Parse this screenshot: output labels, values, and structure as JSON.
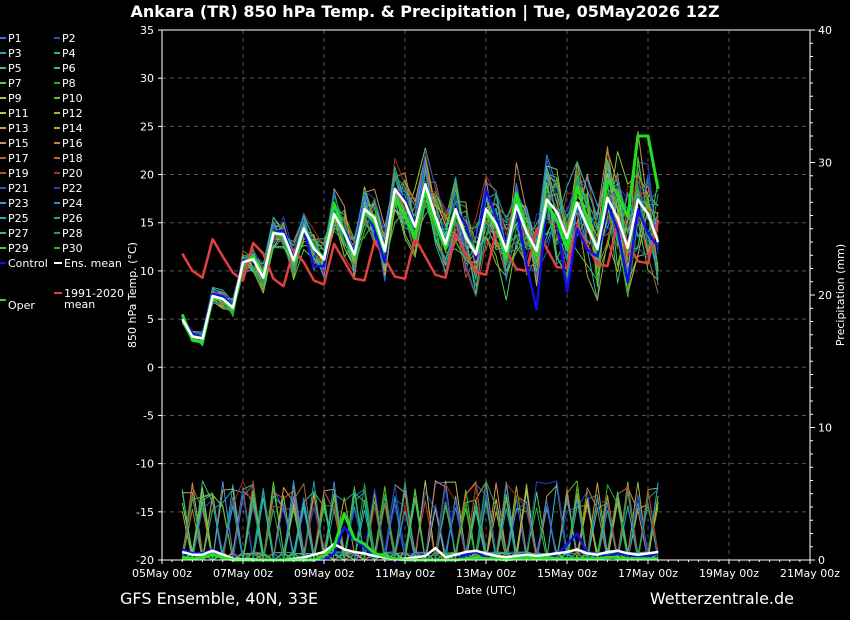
{
  "header": {
    "title": "Ankara  (TR)  850 hPa Temp. & Precipitation | Tue, 05May2026 12Z"
  },
  "footer": {
    "model": "GFS Ensemble, 40N, 33E",
    "site": "Wetterzentrale.de"
  },
  "chart_data": {
    "type": "line",
    "xlabel": "Date (UTC)",
    "ylabel": "850 hPa Temp. (°C)",
    "y2label": "Precipitation (mm)",
    "xlim": [
      "05May 00z",
      "21May 00z"
    ],
    "x_ticks": [
      "05May 00z",
      "07May 00z",
      "09May 00z",
      "11May 00z",
      "13May 00z",
      "15May 00z",
      "17May 00z",
      "19May 00z",
      "21May 00z"
    ],
    "ylim": [
      -20,
      35
    ],
    "y_ticks": [
      35,
      30,
      25,
      20,
      15,
      10,
      5,
      0,
      -5,
      -10,
      -15,
      -20
    ],
    "y2lim": [
      0,
      40
    ],
    "y2_ticks": [
      40,
      30,
      20,
      10,
      0
    ],
    "grid": true,
    "time_step_hours": 6,
    "first_time": "05May 12z",
    "legend": {
      "members": [
        "P1",
        "P2",
        "P3",
        "P4",
        "P5",
        "P6",
        "P7",
        "P8",
        "P9",
        "P10",
        "P11",
        "P12",
        "P13",
        "P14",
        "P15",
        "P16",
        "P17",
        "P18",
        "P19",
        "P20",
        "P21",
        "P22",
        "P23",
        "P24",
        "P25",
        "P26",
        "P27",
        "P28",
        "P29",
        "P30"
      ],
      "control": "Control",
      "ens_mean": "Ens. mean",
      "oper": "Oper",
      "climate": "1991-2020\nmean"
    },
    "colors": {
      "control": "#1010e0",
      "ens_mean": "#ffffff",
      "oper": "#20e020",
      "climate": "#e04040",
      "members": [
        "#3a6cf0",
        "#2050d0",
        "#2aa0c0",
        "#20b0b0",
        "#30c0a0",
        "#40c060",
        "#50d050",
        "#30a030",
        "#90d040",
        "#60c020",
        "#c0c050",
        "#b0b040",
        "#d0a040",
        "#c0a030",
        "#d09060",
        "#c08040",
        "#b06040",
        "#c06030",
        "#b05030",
        "#a03020",
        "#3050e0",
        "#2040c0",
        "#4a90e0",
        "#3a80d0",
        "#20b0c0",
        "#20a0a0",
        "#30c080",
        "#20a060",
        "#40d040",
        "#30b030"
      ]
    },
    "series": [
      {
        "name": "Control",
        "values": [
          5.2,
          3.5,
          3.1,
          7.6,
          7.4,
          6.3,
          11.1,
          11.3,
          9.5,
          14.0,
          14.2,
          11.3,
          14.1,
          10.5,
          10.5,
          16.7,
          14.3,
          11.9,
          16.4,
          14.3,
          10.9,
          18.6,
          17.4,
          14.9,
          19.1,
          15.5,
          12.3,
          16.4,
          14.8,
          11.2,
          18.4,
          15.6,
          12.1,
          16.7,
          10.7,
          6.0,
          16.8,
          15.4,
          7.8,
          14.4,
          12.2,
          11.5,
          17.0,
          14.3,
          8.8,
          16.4,
          13.9,
          12.5
        ]
      },
      {
        "name": "Ens. mean",
        "values": [
          5.0,
          3.2,
          3.0,
          7.4,
          7.1,
          6.2,
          10.9,
          11.2,
          9.3,
          13.9,
          13.8,
          11.1,
          14.4,
          12.3,
          11.2,
          15.9,
          14.0,
          11.7,
          16.4,
          15.5,
          12.1,
          18.5,
          17.1,
          14.6,
          19.0,
          15.7,
          12.8,
          16.4,
          13.5,
          11.7,
          16.4,
          14.9,
          12.1,
          16.8,
          14.0,
          12.1,
          17.4,
          16.1,
          13.4,
          17.1,
          14.6,
          12.3,
          17.6,
          15.5,
          12.4,
          17.4,
          15.9,
          13.0
        ]
      },
      {
        "name": "Oper",
        "values": [
          5.5,
          2.8,
          2.6,
          7.2,
          7.0,
          6.0,
          10.8,
          11.5,
          9.5,
          14.0,
          13.6,
          11.0,
          14.4,
          12.5,
          11.2,
          17.0,
          14.0,
          11.4,
          16.2,
          15.0,
          12.0,
          17.6,
          15.6,
          13.4,
          18.6,
          15.0,
          12.3,
          15.9,
          13.7,
          11.8,
          16.0,
          14.6,
          11.4,
          18.0,
          14.2,
          11.6,
          17.0,
          15.2,
          12.2,
          18.7,
          15.4,
          12.2,
          19.4,
          18.0,
          15.6,
          24.0,
          24.0,
          18.5
        ]
      },
      {
        "name": "1991-2020\nmean",
        "values": [
          11.8,
          10.0,
          9.3,
          13.3,
          11.5,
          9.8,
          9.0,
          12.9,
          11.8,
          9.2,
          8.4,
          12.2,
          10.9,
          9.0,
          8.6,
          12.8,
          11.0,
          9.2,
          9.0,
          13.1,
          11.3,
          9.4,
          9.2,
          13.4,
          11.5,
          9.6,
          9.3,
          13.8,
          11.8,
          9.9,
          9.6,
          14.1,
          12.1,
          10.2,
          10.0,
          14.4,
          12.3,
          10.4,
          10.3,
          14.7,
          12.6,
          10.7,
          10.5,
          15.0,
          12.9,
          11.0,
          10.8,
          15.3
        ]
      }
    ],
    "precip": [
      {
        "name": "Control",
        "values": [
          0.8,
          0.5,
          0.5,
          0.8,
          0.4,
          0.1,
          0,
          0,
          0,
          0,
          0,
          0,
          0,
          0,
          0,
          0.5,
          2.5,
          1.5,
          1.0,
          0.3,
          0.2,
          0,
          0,
          0,
          0,
          0,
          0,
          0,
          0.4,
          0.6,
          0.2,
          0.1,
          0,
          0.3,
          0.2,
          0.1,
          0.2,
          0.4,
          1.2,
          2.0,
          0.5,
          0.4,
          0.3,
          0.5,
          0.4,
          0.2,
          0.3,
          0.5
        ]
      },
      {
        "name": "Ens. mean",
        "values": [
          0.6,
          0.4,
          0.4,
          0.7,
          0.4,
          0.1,
          0.05,
          0.05,
          0,
          0,
          0,
          0.1,
          0.2,
          0.4,
          0.6,
          1.2,
          0.8,
          0.6,
          0.5,
          0.3,
          0.2,
          0.1,
          0.1,
          0.2,
          0.3,
          0.9,
          0.2,
          0.4,
          0.6,
          0.7,
          0.5,
          0.3,
          0.2,
          0.3,
          0.4,
          0.3,
          0.4,
          0.5,
          0.6,
          0.8,
          0.5,
          0.4,
          0.6,
          0.7,
          0.5,
          0.4,
          0.5,
          0.6
        ]
      },
      {
        "name": "Oper",
        "values": [
          0.2,
          0.1,
          0.2,
          0.4,
          0.2,
          0,
          0,
          0,
          0,
          0,
          0,
          0,
          0,
          0,
          0.3,
          1.0,
          3.5,
          1.6,
          1.2,
          0.5,
          0.3,
          0.1,
          0,
          0,
          0,
          0,
          0,
          0,
          0.1,
          0.2,
          0.1,
          0.1,
          0,
          0.1,
          0.2,
          0.1,
          0.2,
          0.1,
          0.1,
          0.1,
          0.1,
          0.1,
          0.2,
          0.2,
          0.1,
          0.1,
          0.1,
          0.1
        ]
      }
    ]
  }
}
